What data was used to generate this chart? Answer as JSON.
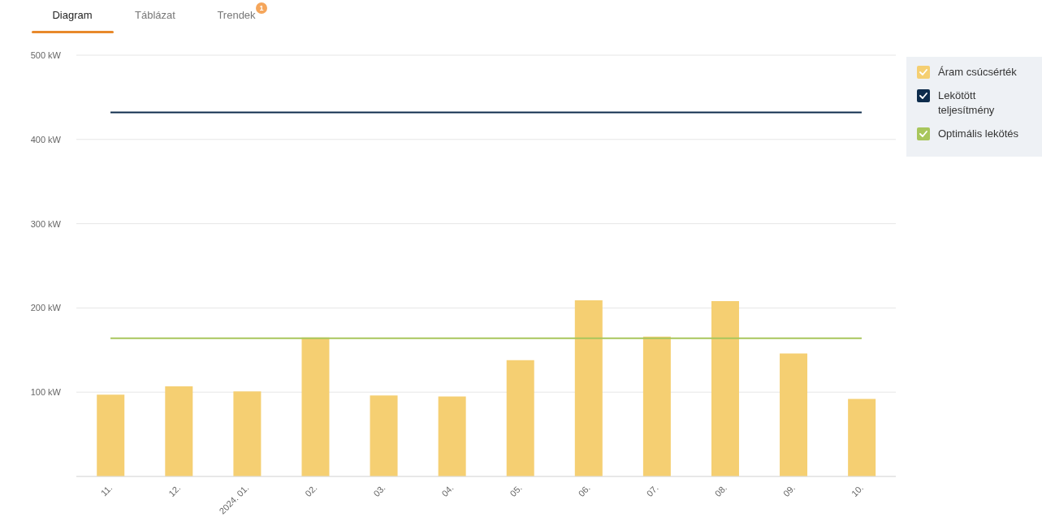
{
  "chart_data": {
    "type": "bar",
    "categories": [
      "11.",
      "12.",
      "2024. 01.",
      "02.",
      "03.",
      "04.",
      "05.",
      "06.",
      "07.",
      "08.",
      "09.",
      "10."
    ],
    "series": [
      {
        "name": "Áram csúcsérték",
        "color": "#f5cf72",
        "values": [
          97,
          107,
          101,
          165,
          96,
          95,
          138,
          209,
          166,
          208,
          146,
          92
        ]
      },
      {
        "name": "Lekötött teljesítmény",
        "type": "line",
        "color": "#0e2c4c",
        "values": [
          432,
          432,
          432,
          432,
          432,
          432,
          432,
          432,
          432,
          432,
          432,
          432
        ]
      },
      {
        "name": "Optimális lekötés",
        "type": "line",
        "color": "#a8c65c",
        "values": [
          164,
          164,
          164,
          164,
          164,
          164,
          164,
          164,
          164,
          164,
          164,
          164
        ]
      }
    ],
    "ylim": [
      0,
      500
    ],
    "yticks": [
      {
        "value": 0,
        "label": null
      },
      {
        "value": 100,
        "label": "100 kW"
      },
      {
        "value": 200,
        "label": "200 kW"
      },
      {
        "value": 300,
        "label": "300 kW"
      },
      {
        "value": 400,
        "label": "400 kW"
      },
      {
        "value": 500,
        "label": "500 kW"
      }
    ],
    "grid": "y",
    "legend": "top right",
    "line_style": "solid",
    "annotations": [
      "Diagram",
      "Táblázat",
      "Trendek",
      "1"
    ]
  }
}
